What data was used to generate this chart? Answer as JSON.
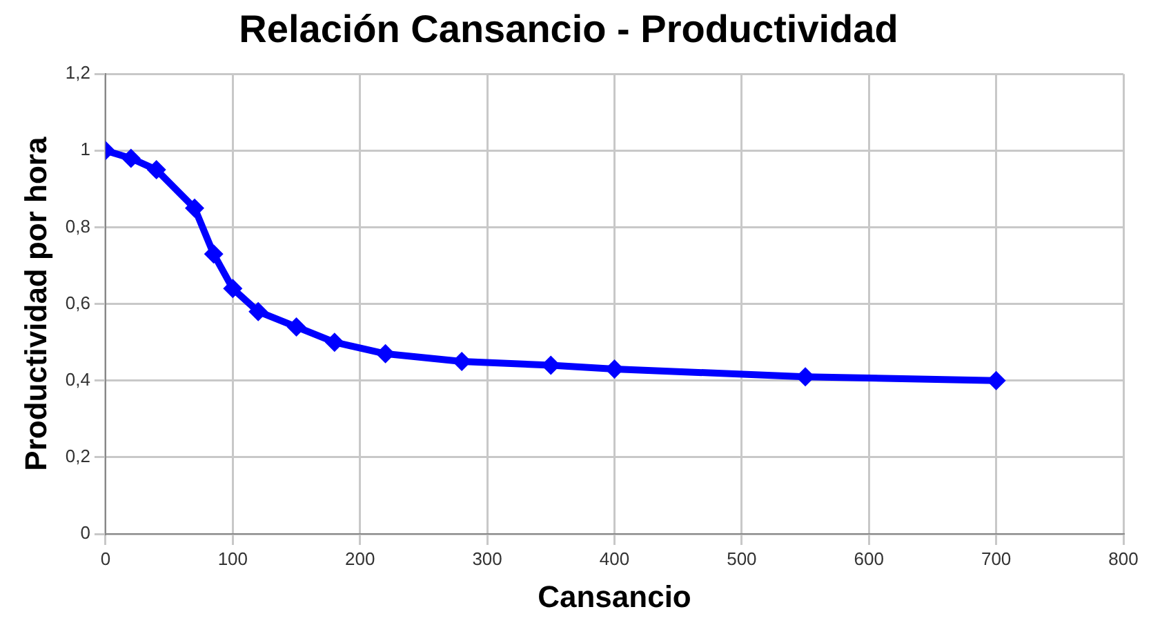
{
  "chart_data": {
    "type": "line",
    "title": "Relación Cansancio - Productividad",
    "xlabel": "Cansancio",
    "ylabel": "Productividad por hora",
    "x": [
      0,
      20,
      40,
      70,
      85,
      100,
      120,
      150,
      180,
      220,
      280,
      350,
      400,
      550,
      700
    ],
    "series": [
      {
        "color": "#0000ff",
        "values": [
          1,
          0.98,
          0.95,
          0.85,
          0.73,
          0.64,
          0.58,
          0.54,
          0.5,
          0.47,
          0.45,
          0.44,
          0.43,
          0.41,
          0.4
        ]
      }
    ],
    "xlim": [
      0,
      800
    ],
    "xticks": [
      0,
      100,
      200,
      300,
      400,
      500,
      600,
      700,
      800
    ],
    "ylim": [
      0,
      1.2
    ],
    "yticks": [
      {
        "value": 0,
        "label": "0"
      },
      {
        "value": 0.2,
        "label": "0,2"
      },
      {
        "value": 0.4,
        "label": "0,4"
      },
      {
        "value": 0.6,
        "label": "0,6"
      },
      {
        "value": 0.8,
        "label": "0,8"
      },
      {
        "value": 1,
        "label": "1"
      },
      {
        "value": 1.2,
        "label": "1,2"
      }
    ],
    "grid": true,
    "legend": false,
    "marker": "diamond",
    "line_style": "solid"
  }
}
